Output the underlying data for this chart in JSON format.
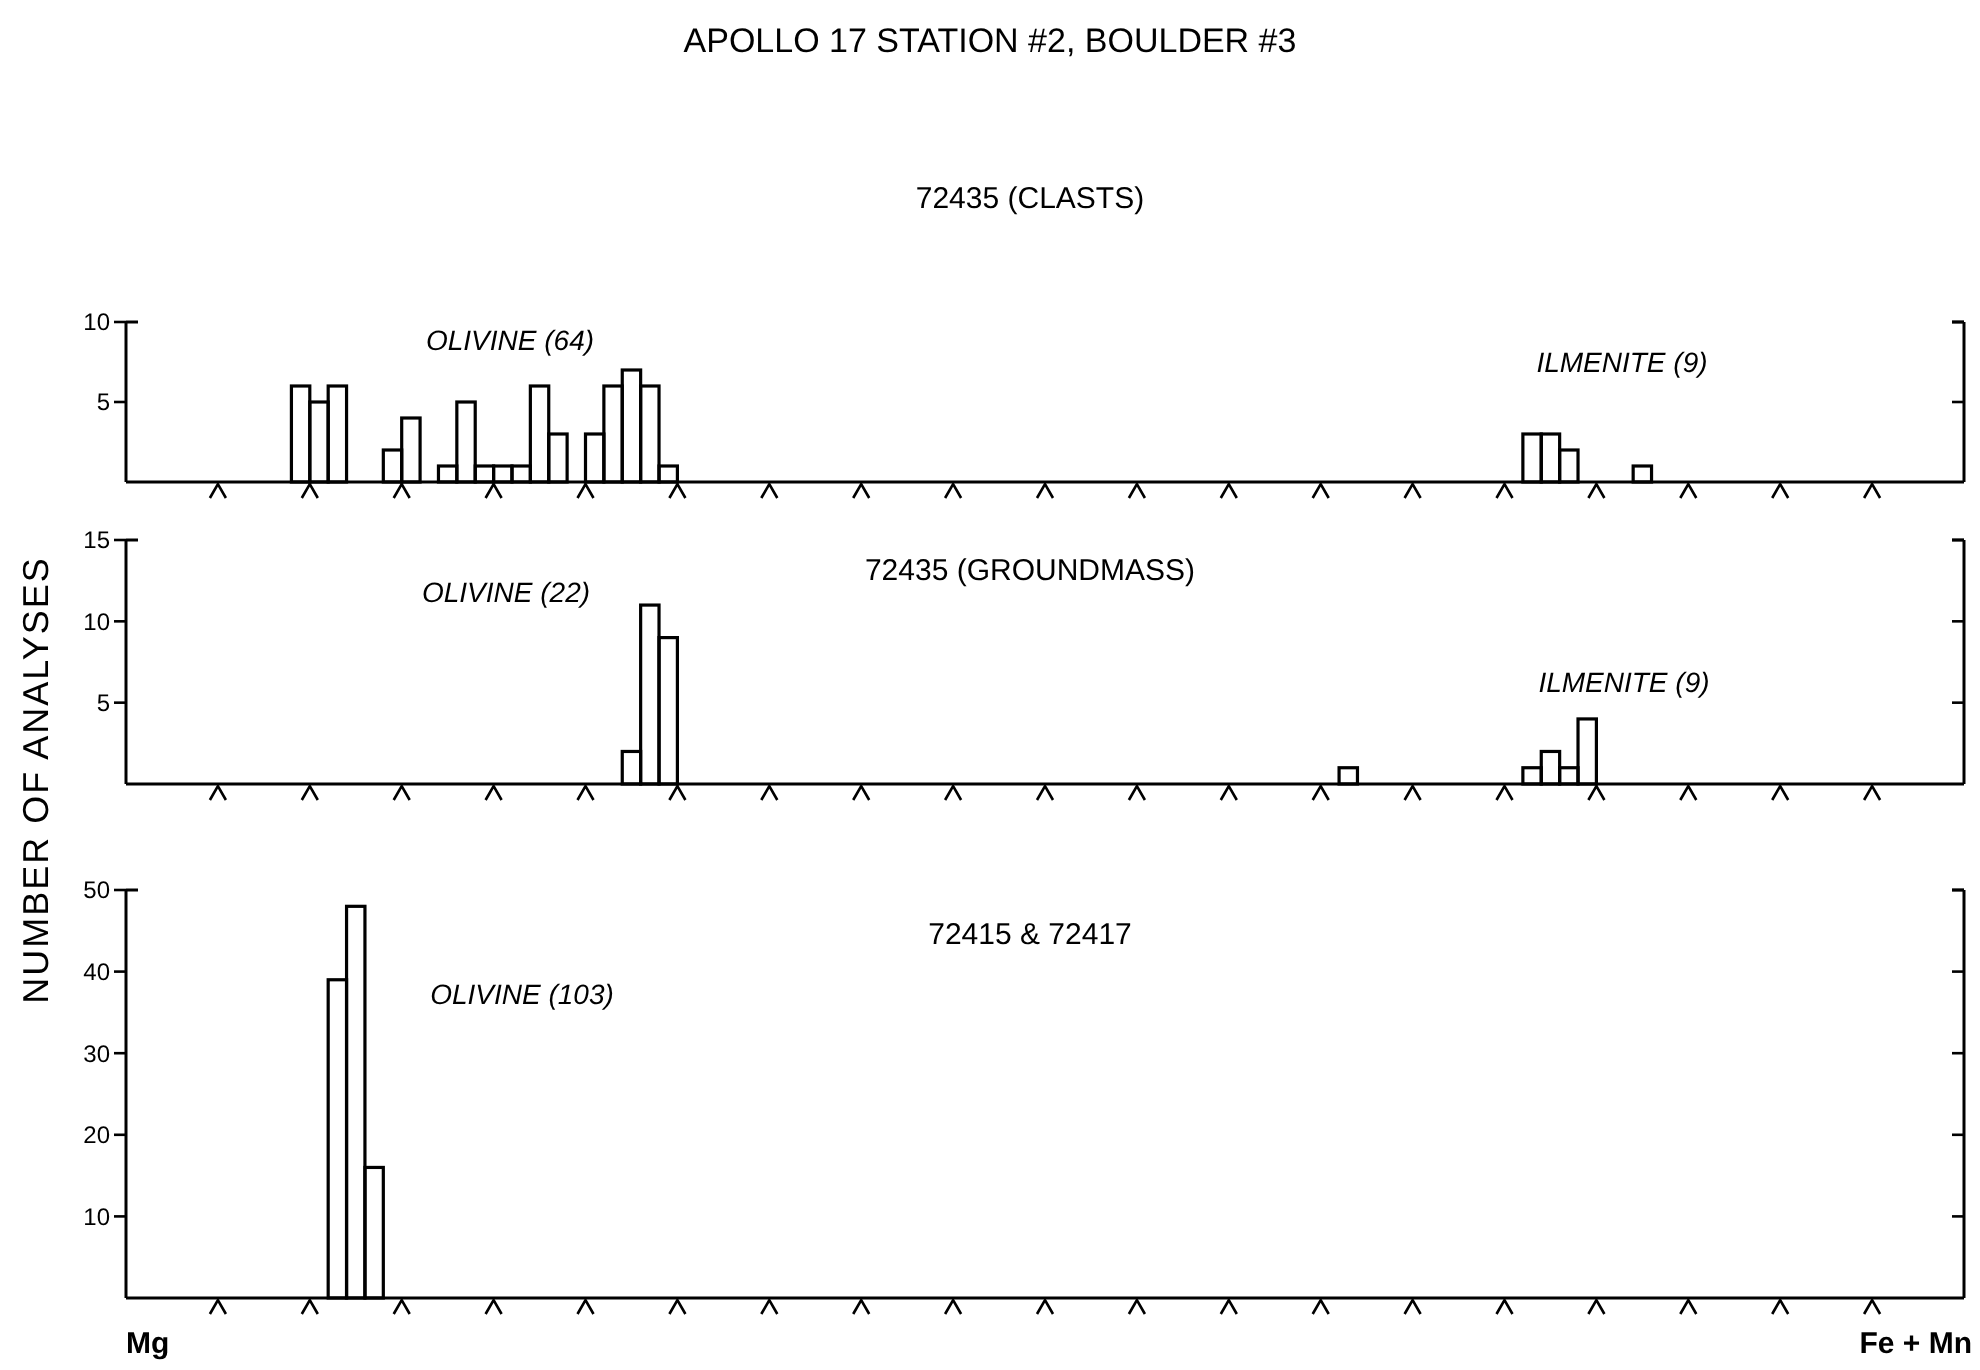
{
  "chart_data": [
    {
      "type": "bar",
      "title": "APOLLO 17 STATION #2, BOULDER #3",
      "subtitle": "72435 (CLASTS)",
      "color": "#000000",
      "categories": [
        null,
        null,
        null,
        null,
        null,
        null,
        null,
        null,
        null,
        null,
        null,
        null,
        null,
        null,
        null,
        null,
        null,
        null,
        null,
        null,
        null,
        null,
        null,
        null,
        null,
        null,
        null,
        null,
        null,
        null,
        null,
        null,
        null,
        null,
        null,
        null,
        null,
        null,
        null,
        null,
        null,
        null,
        null,
        null,
        null,
        null,
        null,
        null,
        null,
        null,
        null,
        null,
        null,
        null,
        null,
        null,
        null,
        null,
        null,
        null,
        null,
        null,
        null,
        null,
        null,
        null,
        null,
        null,
        null,
        null,
        null,
        null,
        null,
        null,
        null,
        null,
        null,
        null,
        null,
        null,
        null,
        null,
        null,
        null,
        null,
        null,
        null,
        null,
        null,
        null,
        null,
        null,
        null,
        null,
        null,
        null,
        null,
        null,
        null,
        null
      ],
      "values": [
        0,
        0,
        0,
        0,
        0,
        0,
        0,
        0,
        0,
        6,
        5,
        6,
        0,
        0,
        2,
        4,
        0,
        1,
        5,
        1,
        1,
        1,
        6,
        3,
        0,
        3,
        6,
        7,
        6,
        1,
        0,
        0,
        0,
        0,
        0,
        0,
        0,
        0,
        0,
        0,
        0,
        0,
        0,
        0,
        0,
        0,
        0,
        0,
        0,
        0,
        0,
        0,
        0,
        0,
        0,
        0,
        0,
        0,
        0,
        0,
        0,
        0,
        0,
        0,
        0,
        0,
        0,
        0,
        0,
        0,
        0,
        0,
        0,
        0,
        0,
        0,
        3,
        3,
        2,
        0,
        0,
        0,
        1,
        0,
        0,
        0,
        0,
        0,
        0,
        0,
        0,
        0,
        0,
        0,
        0,
        0,
        0,
        0,
        0,
        0
      ],
      "ylim": [
        0,
        10
      ],
      "yticks": [
        5,
        10
      ],
      "annotations": [
        "OLIVINE (64)",
        "ILMENITE (9)"
      ]
    },
    {
      "type": "bar",
      "title": "72435 (GROUNDMASS)",
      "ylabel": "NUMBER OF ANALYSES",
      "color": "#000000",
      "categories": [
        null,
        null,
        null,
        null,
        null,
        null,
        null,
        null,
        null,
        null,
        null,
        null,
        null,
        null,
        null,
        null,
        null,
        null,
        null,
        null,
        null,
        null,
        null,
        null,
        null,
        null,
        null,
        null,
        null,
        null,
        null,
        null,
        null,
        null,
        null,
        null,
        null,
        null,
        null,
        null,
        null,
        null,
        null,
        null,
        null,
        null,
        null,
        null,
        null,
        null,
        null,
        null,
        null,
        null,
        null,
        null,
        null,
        null,
        null,
        null,
        null,
        null,
        null,
        null,
        null,
        null,
        null,
        null,
        null,
        null,
        null,
        null,
        null,
        null,
        null,
        null,
        null,
        null,
        null,
        null,
        null,
        null,
        null,
        null,
        null,
        null,
        null,
        null,
        null,
        null,
        null,
        null,
        null,
        null,
        null,
        null,
        null,
        null,
        null,
        null
      ],
      "values": [
        0,
        0,
        0,
        0,
        0,
        0,
        0,
        0,
        0,
        0,
        0,
        0,
        0,
        0,
        0,
        0,
        0,
        0,
        0,
        0,
        0,
        0,
        0,
        0,
        0,
        0,
        0,
        2,
        11,
        9,
        0,
        0,
        0,
        0,
        0,
        0,
        0,
        0,
        0,
        0,
        0,
        0,
        0,
        0,
        0,
        0,
        0,
        0,
        0,
        0,
        0,
        0,
        0,
        0,
        0,
        0,
        0,
        0,
        0,
        0,
        0,
        0,
        0,
        0,
        0,
        0,
        1,
        0,
        0,
        0,
        0,
        0,
        0,
        0,
        0,
        0,
        1,
        2,
        1,
        4,
        0,
        0,
        0,
        0,
        0,
        0,
        0,
        0,
        0,
        0,
        0,
        0,
        0,
        0,
        0,
        0,
        0,
        0,
        0,
        0
      ],
      "ylim": [
        0,
        15
      ],
      "yticks": [
        5,
        10,
        15
      ],
      "annotations": [
        "OLIVINE (22)",
        "ILMENITE (9)"
      ]
    },
    {
      "type": "bar",
      "title": "72415 & 72417",
      "color": "#000000",
      "categories": [
        null,
        null,
        null,
        null,
        null,
        null,
        null,
        null,
        null,
        null,
        null,
        null,
        null,
        null,
        null,
        null,
        null,
        null,
        null,
        null,
        null,
        null,
        null,
        null,
        null,
        null,
        null,
        null,
        null,
        null,
        null,
        null,
        null,
        null,
        null,
        null,
        null,
        null,
        null,
        null,
        null,
        null,
        null,
        null,
        null,
        null,
        null,
        null,
        null,
        null,
        null,
        null,
        null,
        null,
        null,
        null,
        null,
        null,
        null,
        null,
        null,
        null,
        null,
        null,
        null,
        null,
        null,
        null,
        null,
        null,
        null,
        null,
        null,
        null,
        null,
        null,
        null,
        null,
        null,
        null,
        null,
        null,
        null,
        null,
        null,
        null,
        null,
        null,
        null,
        null,
        null,
        null,
        null,
        null,
        null,
        null,
        null,
        null,
        null,
        null
      ],
      "values": [
        0,
        0,
        0,
        0,
        0,
        0,
        0,
        0,
        0,
        0,
        0,
        39,
        48,
        16,
        0,
        0,
        0,
        0,
        0,
        0,
        0,
        0,
        0,
        0,
        0,
        0,
        0,
        0,
        0,
        0,
        0,
        0,
        0,
        0,
        0,
        0,
        0,
        0,
        0,
        0,
        0,
        0,
        0,
        0,
        0,
        0,
        0,
        0,
        0,
        0,
        0,
        0,
        0,
        0,
        0,
        0,
        0,
        0,
        0,
        0,
        0,
        0,
        0,
        0,
        0,
        0,
        0,
        0,
        0,
        0,
        0,
        0,
        0,
        0,
        0,
        0,
        0,
        0,
        0,
        0,
        0,
        0,
        0,
        0,
        0,
        0,
        0,
        0,
        0,
        0,
        0,
        0,
        0,
        0,
        0,
        0,
        0,
        0,
        0,
        0
      ],
      "ylim": [
        0,
        50
      ],
      "yticks": [
        10,
        20,
        30,
        40,
        50
      ],
      "annotations": [
        "OLIVINE (103)",
        "Mg",
        "Fe + Mn"
      ]
    }
  ]
}
